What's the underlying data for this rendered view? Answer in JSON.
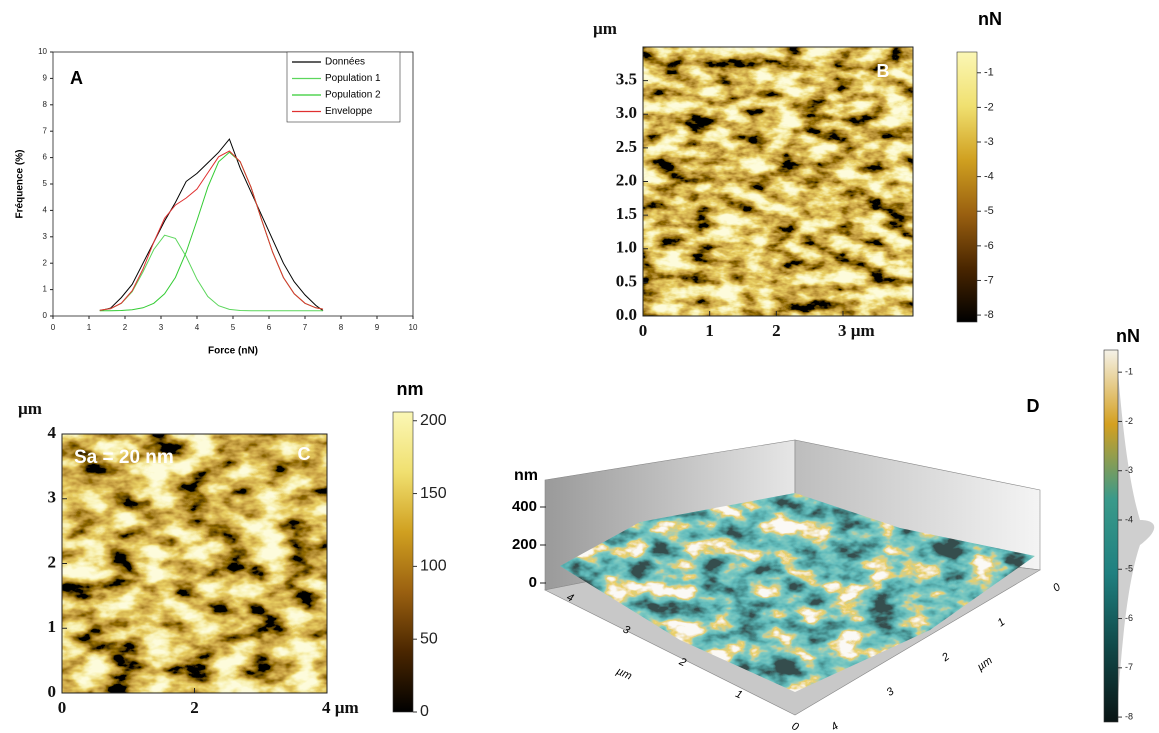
{
  "chart_data": [
    {
      "type": "line",
      "label": "A",
      "x_label": "Force (nN)",
      "y_label": "Fréquence (%)",
      "xlim": [
        0,
        10
      ],
      "ylim": [
        0,
        10
      ],
      "xticks": [
        0,
        1,
        2,
        3,
        4,
        5,
        6,
        7,
        8,
        9,
        10
      ],
      "yticks": [
        0,
        1,
        2,
        3,
        4,
        5,
        6,
        7,
        8,
        9,
        10
      ],
      "legend": "upper right",
      "x": [
        1.3,
        1.6,
        1.9,
        2.2,
        2.5,
        2.8,
        3.1,
        3.4,
        3.7,
        4.0,
        4.3,
        4.6,
        4.9,
        5.2,
        5.5,
        5.8,
        6.1,
        6.4,
        6.7,
        7.0,
        7.3,
        7.5
      ],
      "series": [
        {
          "name": "Données",
          "color": "#000000",
          "values": [
            0.2,
            0.3,
            0.7,
            1.2,
            2.0,
            2.8,
            3.6,
            4.3,
            5.1,
            5.4,
            5.8,
            6.2,
            6.7,
            5.6,
            4.7,
            3.8,
            2.9,
            2.0,
            1.3,
            0.8,
            0.4,
            0.2
          ]
        },
        {
          "name": "Population 1",
          "color": "#5cd65c",
          "values": [
            0.22,
            0.28,
            0.48,
            0.92,
            1.67,
            2.52,
            3.06,
            2.94,
            2.25,
            1.39,
            0.74,
            0.39,
            0.25,
            0.21,
            0.2,
            0.2,
            0.2,
            0.2,
            0.2,
            0.2,
            0.2,
            0.2
          ]
        },
        {
          "name": "Population 2",
          "color": "#33cc33",
          "values": [
            0.2,
            0.2,
            0.21,
            0.24,
            0.31,
            0.48,
            0.84,
            1.46,
            2.42,
            3.62,
            4.88,
            5.84,
            6.2,
            5.84,
            4.88,
            3.62,
            2.42,
            1.46,
            0.84,
            0.48,
            0.31,
            0.26
          ]
        },
        {
          "name": "Enveloppe",
          "color": "#e03030",
          "values": [
            0.22,
            0.28,
            0.49,
            0.96,
            1.78,
            2.8,
            3.7,
            4.2,
            4.47,
            4.81,
            5.42,
            6.03,
            6.25,
            5.85,
            4.88,
            3.62,
            2.42,
            1.46,
            0.84,
            0.48,
            0.31,
            0.26
          ]
        }
      ]
    },
    {
      "type": "image",
      "label": "B",
      "axis_unit": "µm",
      "colorbar_label": "nN",
      "colormap": [
        "#000000",
        "#4a2600",
        "#9a6010",
        "#d0a020",
        "#f0e070",
        "#fbf7b5"
      ],
      "xlim": [
        0,
        4.05
      ],
      "ylim": [
        0,
        4.0
      ],
      "xticks": [
        0,
        1,
        2,
        {
          "value": 3,
          "label": "3 µm"
        }
      ],
      "yticks": [
        {
          "value": 0,
          "label": "0.0"
        },
        0.5,
        {
          "value": 1,
          "label": "1.0"
        },
        1.5,
        {
          "value": 2,
          "label": "2.0"
        },
        2.5,
        {
          "value": 3,
          "label": "3.0"
        },
        3.5
      ],
      "clim": [
        -8.2,
        -0.4
      ],
      "cticks": [
        -1,
        -2,
        -3,
        -4,
        -5,
        -6,
        -7,
        -8
      ]
    },
    {
      "type": "image",
      "label": "C",
      "annotation": "Sa = 20 nm",
      "axis_unit": "µm",
      "colorbar_label": "nm",
      "colormap": [
        "#000000",
        "#4a2600",
        "#9a6010",
        "#d0a020",
        "#f0e070",
        "#fbf7b5"
      ],
      "xlim": [
        0,
        4
      ],
      "ylim": [
        0,
        4
      ],
      "xticks": [
        0,
        2,
        {
          "value": 4,
          "label": "4 µm"
        }
      ],
      "yticks": [
        0,
        1,
        2,
        3,
        4
      ],
      "clim": [
        0,
        206
      ],
      "cticks": [
        0,
        50,
        100,
        150,
        200
      ]
    },
    {
      "type": "surface",
      "label": "D",
      "z_label": "nm",
      "x_label": "µm",
      "y_label": "µm",
      "colormap": [
        "#0a1414",
        "#104848",
        "#1f8080",
        "#3a9a8a",
        "#d4a020",
        "#f5f2e8"
      ],
      "zlim": [
        0,
        400
      ],
      "zticks": [
        0,
        200,
        400
      ],
      "xlim": [
        0,
        4
      ],
      "xticks": [
        0,
        1,
        2,
        3,
        4
      ],
      "ylim": [
        0,
        4
      ],
      "yticks": [
        0,
        1,
        2,
        3,
        4
      ],
      "colorbar_label": "nN",
      "clim": [
        -8.1,
        -0.55
      ],
      "cticks": [
        -1,
        -2,
        -3,
        -4,
        -5,
        -6,
        -7,
        -8
      ]
    }
  ]
}
